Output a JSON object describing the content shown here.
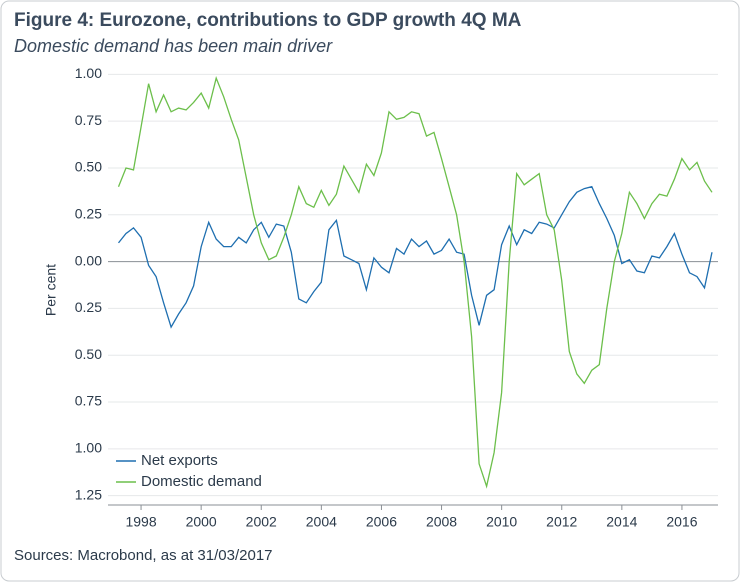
{
  "chart_data": {
    "type": "line",
    "title": "Figure 4: Eurozone, contributions to GDP growth 4Q MA",
    "subtitle": "Domestic demand has been main driver",
    "y_label": "Per cent",
    "source": "Sources: Macrobond, as at 31/03/2017",
    "x": [
      1997.25,
      1997.5,
      1997.75,
      1998,
      1998.25,
      1998.5,
      1998.75,
      1999,
      1999.25,
      1999.5,
      1999.75,
      2000,
      2000.25,
      2000.5,
      2000.75,
      2001,
      2001.25,
      2001.5,
      2001.75,
      2002,
      2002.25,
      2002.5,
      2002.75,
      2003,
      2003.25,
      2003.5,
      2003.75,
      2004,
      2004.25,
      2004.5,
      2004.75,
      2005,
      2005.25,
      2005.5,
      2005.75,
      2006,
      2006.25,
      2006.5,
      2006.75,
      2007,
      2007.25,
      2007.5,
      2007.75,
      2008,
      2008.25,
      2008.5,
      2008.75,
      2009,
      2009.25,
      2009.5,
      2009.75,
      2010,
      2010.25,
      2010.5,
      2010.75,
      2011,
      2011.25,
      2011.5,
      2011.75,
      2012,
      2012.25,
      2012.5,
      2012.75,
      2013,
      2013.25,
      2013.5,
      2013.75,
      2014,
      2014.25,
      2014.5,
      2014.75,
      2015,
      2015.25,
      2015.5,
      2015.75,
      2016,
      2016.25,
      2016.5,
      2016.75,
      2017
    ],
    "series": [
      {
        "name": "Net exports",
        "color": "#1f6fb0",
        "values": [
          0.1,
          0.15,
          0.18,
          0.13,
          -0.02,
          -0.08,
          -0.22,
          -0.35,
          -0.28,
          -0.22,
          -0.13,
          0.08,
          0.21,
          0.12,
          0.08,
          0.08,
          0.13,
          0.1,
          0.17,
          0.21,
          0.13,
          0.2,
          0.19,
          0.05,
          -0.2,
          -0.22,
          -0.16,
          -0.11,
          0.17,
          0.22,
          0.03,
          0.01,
          -0.01,
          -0.15,
          0.02,
          -0.03,
          -0.06,
          0.07,
          0.04,
          0.12,
          0.08,
          0.11,
          0.04,
          0.06,
          0.12,
          0.05,
          0.04,
          -0.18,
          -0.34,
          -0.18,
          -0.15,
          0.09,
          0.19,
          0.09,
          0.17,
          0.15,
          0.21,
          0.2,
          0.18,
          0.25,
          0.32,
          0.37,
          0.39,
          0.4,
          0.31,
          0.23,
          0.14,
          -0.01,
          0.01,
          -0.05,
          -0.06,
          0.03,
          0.02,
          0.08,
          0.15,
          0.04,
          -0.06,
          -0.08,
          -0.14,
          0.05
        ]
      },
      {
        "name": "Domestic demand",
        "color": "#6cbf4b",
        "values": [
          0.4,
          0.5,
          0.49,
          0.72,
          0.95,
          0.8,
          0.89,
          0.8,
          0.82,
          0.81,
          0.85,
          0.9,
          0.82,
          0.98,
          0.88,
          0.76,
          0.65,
          0.45,
          0.25,
          0.1,
          0.01,
          0.03,
          0.13,
          0.25,
          0.4,
          0.31,
          0.29,
          0.38,
          0.3,
          0.36,
          0.51,
          0.44,
          0.37,
          0.52,
          0.46,
          0.58,
          0.8,
          0.76,
          0.77,
          0.8,
          0.79,
          0.67,
          0.69,
          0.55,
          0.4,
          0.25,
          0.0,
          -0.4,
          -1.08,
          -1.2,
          -1.02,
          -0.7,
          0.0,
          0.47,
          0.41,
          0.44,
          0.47,
          0.25,
          0.17,
          -0.1,
          -0.48,
          -0.6,
          -0.65,
          -0.58,
          -0.55,
          -0.25,
          0.0,
          0.15,
          0.37,
          0.31,
          0.23,
          0.31,
          0.36,
          0.35,
          0.44,
          0.55,
          0.49,
          0.53,
          0.43,
          0.37
        ]
      }
    ],
    "xlim": [
      1996.9,
      2017.2
    ],
    "xticks": [
      1998,
      2000,
      2002,
      2004,
      2006,
      2008,
      2010,
      2012,
      2014,
      2016
    ],
    "ylim": [
      -1.3,
      1.05
    ],
    "yticks": [
      {
        "value": 1,
        "label": "1.00"
      },
      {
        "value": 0.75,
        "label": "0.75"
      },
      {
        "value": 0.5,
        "label": "0.50"
      },
      {
        "value": 0.25,
        "label": "0.25"
      },
      {
        "value": 0,
        "label": "0.00"
      },
      {
        "value": -0.25,
        "label": "0.25"
      },
      {
        "value": -0.5,
        "label": "0.50"
      },
      {
        "value": -0.75,
        "label": "0.75"
      },
      {
        "value": -1,
        "label": "1.00"
      },
      {
        "value": -1.25,
        "label": "1.25"
      }
    ],
    "grid": true,
    "legend": "lower left"
  }
}
